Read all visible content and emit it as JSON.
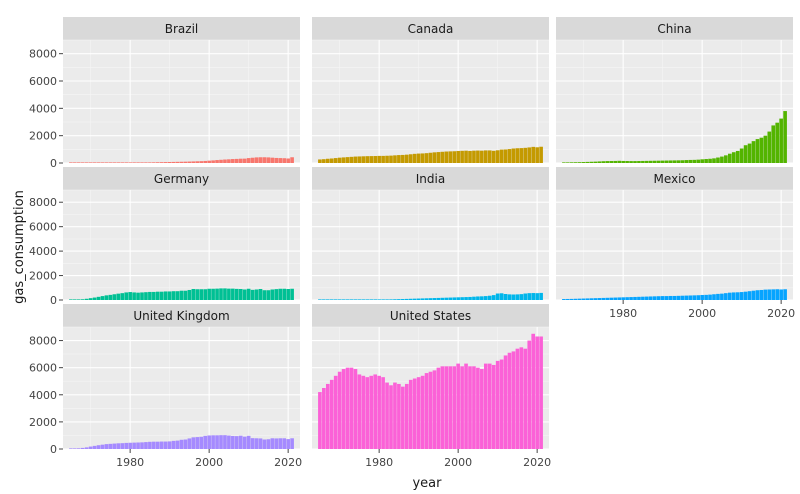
{
  "chart_data": {
    "type": "bar",
    "facet": "country",
    "xlabel": "year",
    "ylabel": "gas_consumption",
    "xlim": [
      1963,
      2023
    ],
    "ylim": [
      0,
      9000
    ],
    "xticks": [
      1980,
      2000,
      2020
    ],
    "yticks": [
      0,
      2000,
      4000,
      6000,
      8000
    ],
    "grid": true,
    "legend": "none",
    "years": [
      1965,
      1966,
      1967,
      1968,
      1969,
      1970,
      1971,
      1972,
      1973,
      1974,
      1975,
      1976,
      1977,
      1978,
      1979,
      1980,
      1981,
      1982,
      1983,
      1984,
      1985,
      1986,
      1987,
      1988,
      1989,
      1990,
      1991,
      1992,
      1993,
      1994,
      1995,
      1996,
      1997,
      1998,
      1999,
      2000,
      2001,
      2002,
      2003,
      2004,
      2005,
      2006,
      2007,
      2008,
      2009,
      2010,
      2011,
      2012,
      2013,
      2014,
      2015,
      2016,
      2017,
      2018,
      2019,
      2020,
      2021
    ],
    "series": [
      {
        "name": "Brazil",
        "color": "#f8766d",
        "values": [
          5,
          5,
          6,
          6,
          7,
          8,
          9,
          10,
          11,
          12,
          13,
          15,
          17,
          19,
          22,
          25,
          28,
          31,
          35,
          39,
          44,
          49,
          55,
          61,
          67,
          73,
          79,
          85,
          91,
          97,
          105,
          115,
          125,
          135,
          150,
          170,
          190,
          215,
          235,
          255,
          270,
          290,
          300,
          315,
          320,
          360,
          385,
          410,
          420,
          420,
          410,
          390,
          370,
          360,
          350,
          330,
          420
        ]
      },
      {
        "name": "Canada",
        "color": "#c49a00",
        "values": [
          260,
          280,
          310,
          330,
          360,
          390,
          410,
          430,
          450,
          470,
          480,
          490,
          500,
          505,
          510,
          520,
          520,
          530,
          540,
          560,
          580,
          590,
          610,
          640,
          670,
          690,
          700,
          720,
          750,
          780,
          800,
          820,
          840,
          850,
          860,
          880,
          890,
          900,
          880,
          900,
          910,
          900,
          920,
          920,
          890,
          930,
          980,
          990,
          1020,
          1060,
          1080,
          1090,
          1110,
          1140,
          1180,
          1150,
          1190
        ]
      },
      {
        "name": "China",
        "color": "#53b400",
        "values": [
          40,
          45,
          50,
          55,
          60,
          70,
          80,
          90,
          100,
          115,
          130,
          140,
          145,
          150,
          160,
          150,
          145,
          140,
          140,
          145,
          150,
          155,
          160,
          165,
          170,
          175,
          180,
          185,
          190,
          195,
          200,
          215,
          225,
          230,
          245,
          270,
          290,
          310,
          340,
          400,
          470,
          560,
          680,
          790,
          880,
          1060,
          1300,
          1420,
          1600,
          1750,
          1850,
          2000,
          2300,
          2750,
          2950,
          3250,
          3800
        ]
      },
      {
        "name": "Germany",
        "color": "#00c094",
        "values": [
          20,
          30,
          40,
          60,
          100,
          150,
          200,
          260,
          320,
          380,
          420,
          470,
          520,
          560,
          620,
          650,
          620,
          600,
          620,
          640,
          660,
          660,
          680,
          680,
          700,
          700,
          720,
          720,
          760,
          760,
          820,
          900,
          880,
          880,
          880,
          920,
          920,
          930,
          950,
          950,
          930,
          930,
          910,
          900,
          860,
          920,
          830,
          860,
          900,
          800,
          800,
          860,
          890,
          920,
          920,
          900,
          920
        ]
      },
      {
        "name": "India",
        "color": "#00b6eb",
        "values": [
          5,
          5,
          6,
          7,
          8,
          9,
          10,
          12,
          14,
          16,
          18,
          20,
          22,
          25,
          28,
          30,
          35,
          40,
          50,
          60,
          70,
          80,
          90,
          100,
          110,
          120,
          130,
          140,
          150,
          160,
          170,
          180,
          190,
          200,
          210,
          220,
          230,
          240,
          250,
          270,
          290,
          300,
          320,
          350,
          400,
          530,
          550,
          490,
          460,
          450,
          460,
          480,
          530,
          560,
          570,
          560,
          580
        ]
      },
      {
        "name": "Mexico",
        "color": "#06a4ff",
        "values": [
          80,
          85,
          90,
          100,
          110,
          120,
          130,
          140,
          150,
          160,
          170,
          180,
          190,
          200,
          210,
          220,
          230,
          240,
          250,
          260,
          270,
          280,
          290,
          300,
          310,
          320,
          320,
          330,
          330,
          340,
          350,
          360,
          370,
          380,
          390,
          410,
          420,
          440,
          470,
          500,
          520,
          560,
          600,
          620,
          630,
          650,
          680,
          720,
          760,
          800,
          820,
          850,
          860,
          870,
          880,
          860,
          880
        ]
      },
      {
        "name": "United Kingdom",
        "color": "#a58aff",
        "values": [
          20,
          30,
          50,
          80,
          120,
          180,
          230,
          280,
          320,
          360,
          380,
          400,
          420,
          430,
          450,
          460,
          470,
          480,
          490,
          510,
          530,
          540,
          540,
          550,
          550,
          560,
          600,
          620,
          680,
          700,
          780,
          860,
          880,
          900,
          970,
          1000,
          1010,
          1010,
          1020,
          1020,
          990,
          960,
          950,
          980,
          910,
          970,
          800,
          790,
          780,
          700,
          720,
          790,
          780,
          790,
          790,
          730,
          790
        ]
      },
      {
        "name": "United States",
        "color": "#fb61d7",
        "values": [
          4200,
          4500,
          4800,
          5100,
          5400,
          5700,
          5900,
          6000,
          6000,
          5900,
          5500,
          5400,
          5300,
          5400,
          5500,
          5400,
          5300,
          4900,
          4700,
          4900,
          4800,
          4600,
          4800,
          5100,
          5200,
          5300,
          5400,
          5600,
          5700,
          5800,
          6000,
          6100,
          6100,
          6100,
          6100,
          6300,
          6100,
          6300,
          6100,
          6100,
          6000,
          5900,
          6300,
          6300,
          6200,
          6500,
          6600,
          6900,
          7100,
          7200,
          7400,
          7500,
          7400,
          8000,
          8500,
          8300,
          8300
        ]
      }
    ]
  }
}
